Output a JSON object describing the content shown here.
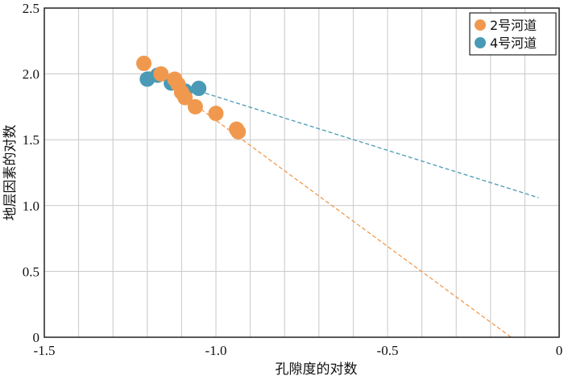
{
  "chart_data": {
    "type": "scatter",
    "xlabel": "孔隙度的对数",
    "ylabel": "地层因素的对数",
    "xlim": [
      -1.5,
      0
    ],
    "ylim": [
      0,
      2.5
    ],
    "x_ticks": [
      -1.5,
      -1.0,
      -0.5,
      0
    ],
    "x_tick_labels": [
      "-1.5",
      "-1.0",
      "-0.5",
      "0"
    ],
    "y_ticks": [
      0,
      0.5,
      1.0,
      1.5,
      2.0,
      2.5
    ],
    "y_tick_labels": [
      "0",
      "0.5",
      "1.0",
      "1.5",
      "2.0",
      "2.5"
    ],
    "grid": true,
    "legend_position": "top-right",
    "series": [
      {
        "name": "2号河道",
        "color": "#F0994E",
        "points": [
          [
            -1.21,
            2.08
          ],
          [
            -1.16,
            2.0
          ],
          [
            -1.12,
            1.96
          ],
          [
            -1.11,
            1.92
          ],
          [
            -1.1,
            1.86
          ],
          [
            -1.09,
            1.82
          ],
          [
            -1.06,
            1.75
          ],
          [
            -1.0,
            1.7
          ],
          [
            -0.94,
            1.58
          ],
          [
            -0.935,
            1.56
          ]
        ],
        "trendline": {
          "x": [
            -1.21,
            -0.14
          ],
          "y": [
            2.05,
            0.0
          ]
        }
      },
      {
        "name": "4号河道",
        "color": "#4A9AB5",
        "points": [
          [
            -1.2,
            1.96
          ],
          [
            -1.17,
            1.99
          ],
          [
            -1.13,
            1.93
          ],
          [
            -1.09,
            1.87
          ],
          [
            -1.05,
            1.89
          ]
        ],
        "trendline": {
          "x": [
            -1.21,
            -0.06
          ],
          "y": [
            2.0,
            1.06
          ]
        }
      }
    ]
  }
}
